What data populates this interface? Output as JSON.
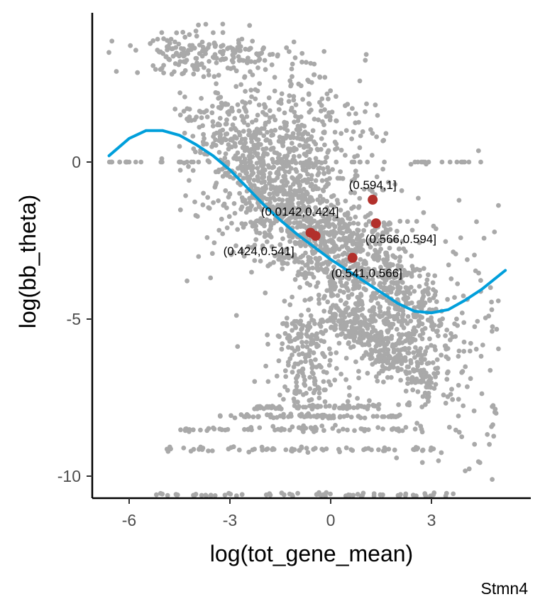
{
  "chart_data": {
    "type": "scatter",
    "title": "",
    "xlabel": "log(tot_gene_mean)",
    "ylabel": "log(bb_theta)",
    "caption": "Stmn4",
    "xlim": [
      -7,
      6.3
    ],
    "ylim": [
      -10.7,
      4.7
    ],
    "x_ticks": [
      -6,
      -3,
      0,
      3
    ],
    "x_tick_labels": [
      "-6",
      "-3",
      "0",
      "3"
    ],
    "y_ticks": [
      0,
      -5,
      -10
    ],
    "y_tick_labels": [
      "0",
      "-5",
      "-10"
    ],
    "grid": false,
    "legend": "none",
    "colors": {
      "background_points": "#a9a9a9",
      "trend_line": "#009fdb",
      "highlight_points": "#b2302b"
    },
    "trend_line": {
      "x": [
        -6.6,
        -6.0,
        -5.5,
        -5.0,
        -4.5,
        -4.0,
        -3.5,
        -3.0,
        -2.5,
        -2.0,
        -1.5,
        -1.0,
        -0.5,
        0.0,
        0.5,
        1.0,
        1.5,
        2.0,
        2.5,
        3.0,
        3.5,
        4.0,
        4.5,
        5.2
      ],
      "y": [
        0.2,
        0.75,
        1.0,
        1.0,
        0.85,
        0.55,
        0.2,
        -0.25,
        -0.8,
        -1.35,
        -1.85,
        -2.3,
        -2.7,
        -3.1,
        -3.45,
        -3.8,
        -4.15,
        -4.5,
        -4.75,
        -4.8,
        -4.7,
        -4.4,
        -4.05,
        -3.45
      ]
    },
    "highlighted_points": [
      {
        "label": "(0.594,1]",
        "x": 1.25,
        "y": -1.2
      },
      {
        "label": "(0.566,0.594]",
        "x": 1.35,
        "y": -1.95
      },
      {
        "label": "(0.0142,0.424]",
        "x": -0.6,
        "y": -2.25
      },
      {
        "label": "(0.424,0.541]",
        "x": -0.45,
        "y": -2.35
      },
      {
        "label": "(0.541,0.566]",
        "x": 0.65,
        "y": -3.05
      }
    ]
  }
}
